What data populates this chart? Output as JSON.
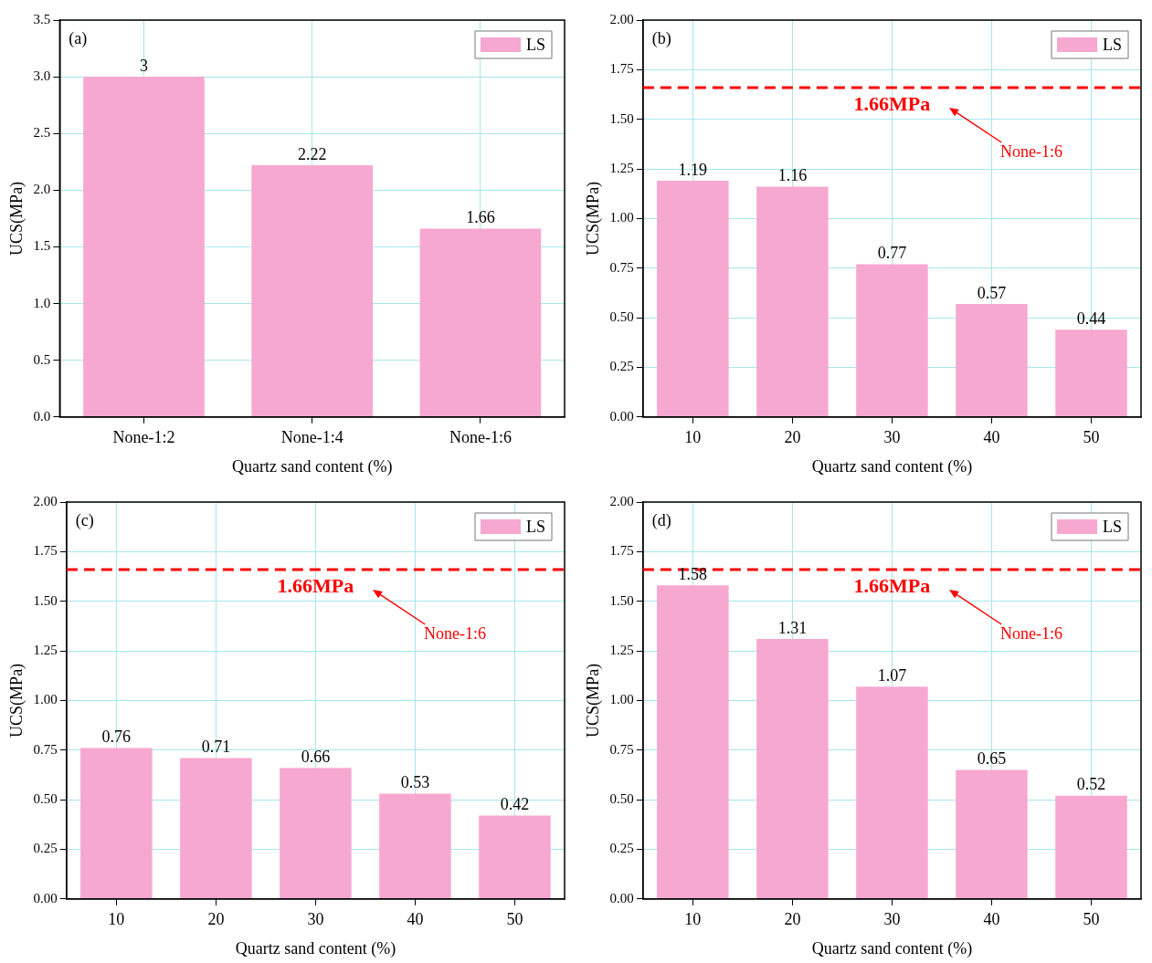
{
  "chart_data": [
    {
      "type": "bar",
      "categories": [
        "None-1:2",
        "None-1:4",
        "None-1:6"
      ],
      "series": [
        {
          "name": "LS",
          "color": "#f7a8d0",
          "values": [
            3,
            2.22,
            1.66
          ]
        }
      ],
      "xlabel": "Quartz sand content (%)",
      "ylabel": "UCS(MPa)",
      "ylim": [
        0,
        3.5
      ],
      "yticks": [
        {
          "value": 0,
          "label": "0.0"
        },
        {
          "value": 0.5,
          "label": "0.5"
        },
        {
          "value": 1,
          "label": "1.0"
        },
        {
          "value": 1.5,
          "label": "1.5"
        },
        {
          "value": 2,
          "label": "2.0"
        },
        {
          "value": 2.5,
          "label": "2.5"
        },
        {
          "value": 3,
          "label": "3.0"
        },
        {
          "value": 3.5,
          "label": "3.5"
        }
      ],
      "grid": true,
      "legend": "top right",
      "data_labels": true,
      "annotations": [
        "(a)"
      ]
    },
    {
      "type": "bar",
      "categories": [
        "10",
        "20",
        "30",
        "40",
        "50"
      ],
      "series": [
        {
          "name": "LS",
          "color": "#f7a8d0",
          "values": [
            1.19,
            1.16,
            0.77,
            0.57,
            0.44
          ]
        }
      ],
      "xlabel": "Quartz sand content (%)",
      "ylabel": "UCS(MPa)",
      "ylim": [
        0,
        2
      ],
      "yticks": [
        {
          "value": 0,
          "label": "0.00"
        },
        {
          "value": 0.25,
          "label": "0.25"
        },
        {
          "value": 0.5,
          "label": "0.50"
        },
        {
          "value": 0.75,
          "label": "0.75"
        },
        {
          "value": 1,
          "label": "1.00"
        },
        {
          "value": 1.25,
          "label": "1.25"
        },
        {
          "value": 1.5,
          "label": "1.50"
        },
        {
          "value": 1.75,
          "label": "1.75"
        },
        {
          "value": 2,
          "label": "2.00"
        }
      ],
      "grid": true,
      "legend": "top right",
      "data_labels": true,
      "ref_lines": [
        {
          "axis": "y",
          "value": 1.66,
          "label": "1.66MPa",
          "color": "#ff0000",
          "line_style": "dashed"
        }
      ],
      "annotations": [
        "(b)",
        "None-1:6"
      ]
    },
    {
      "type": "bar",
      "categories": [
        "10",
        "20",
        "30",
        "40",
        "50"
      ],
      "series": [
        {
          "name": "LS",
          "color": "#f7a8d0",
          "values": [
            0.76,
            0.71,
            0.66,
            0.53,
            0.42
          ]
        }
      ],
      "xlabel": "Quartz sand content (%)",
      "ylabel": "UCS(MPa)",
      "ylim": [
        0,
        2
      ],
      "yticks": [
        {
          "value": 0,
          "label": "0.00"
        },
        {
          "value": 0.25,
          "label": "0.25"
        },
        {
          "value": 0.5,
          "label": "0.50"
        },
        {
          "value": 0.75,
          "label": "0.75"
        },
        {
          "value": 1,
          "label": "1.00"
        },
        {
          "value": 1.25,
          "label": "1.25"
        },
        {
          "value": 1.5,
          "label": "1.50"
        },
        {
          "value": 1.75,
          "label": "1.75"
        },
        {
          "value": 2,
          "label": "2.00"
        }
      ],
      "grid": true,
      "legend": "top right",
      "data_labels": true,
      "ref_lines": [
        {
          "axis": "y",
          "value": 1.66,
          "label": "1.66MPa",
          "color": "#ff0000",
          "line_style": "dashed"
        }
      ],
      "annotations": [
        "(c)",
        "None-1:6"
      ]
    },
    {
      "type": "bar",
      "categories": [
        "10",
        "20",
        "30",
        "40",
        "50"
      ],
      "series": [
        {
          "name": "LS",
          "color": "#f7a8d0",
          "values": [
            1.58,
            1.31,
            1.07,
            0.65,
            0.52
          ]
        }
      ],
      "xlabel": "Quartz sand content (%)",
      "ylabel": "UCS(MPa)",
      "ylim": [
        0,
        2
      ],
      "yticks": [
        {
          "value": 0,
          "label": "0.00"
        },
        {
          "value": 0.25,
          "label": "0.25"
        },
        {
          "value": 0.5,
          "label": "0.50"
        },
        {
          "value": 0.75,
          "label": "0.75"
        },
        {
          "value": 1,
          "label": "1.00"
        },
        {
          "value": 1.25,
          "label": "1.25"
        },
        {
          "value": 1.5,
          "label": "1.50"
        },
        {
          "value": 1.75,
          "label": "1.75"
        },
        {
          "value": 2,
          "label": "2.00"
        }
      ],
      "grid": true,
      "legend": "top right",
      "data_labels": true,
      "ref_lines": [
        {
          "axis": "y",
          "value": 1.66,
          "label": "1.66MPa",
          "color": "#ff0000",
          "line_style": "dashed"
        }
      ],
      "annotations": [
        "(d)",
        "None-1:6"
      ]
    }
  ]
}
